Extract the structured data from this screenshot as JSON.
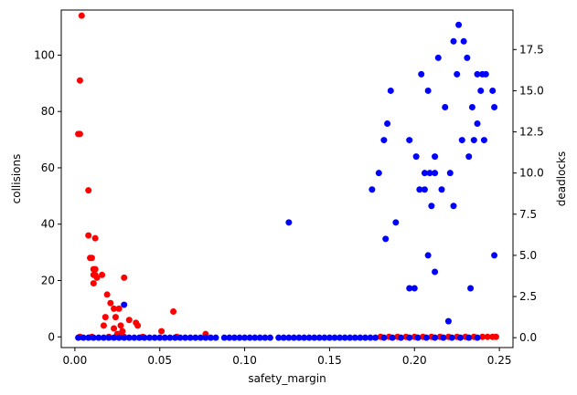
{
  "chart_data": {
    "type": "scatter",
    "title": "",
    "xlabel": "safety_margin",
    "ylabel_left": "collisions",
    "ylabel_right": "deadlocks",
    "xlim": [
      -0.008,
      0.258
    ],
    "ylim_left": [
      -3.8,
      116
    ],
    "ylim_right": [
      -0.6,
      19.9
    ],
    "x_ticks": [
      {
        "value": 0.0,
        "label": "0.00"
      },
      {
        "value": 0.05,
        "label": "0.05"
      },
      {
        "value": 0.1,
        "label": "0.10"
      },
      {
        "value": 0.15,
        "label": "0.15"
      },
      {
        "value": 0.2,
        "label": "0.20"
      },
      {
        "value": 0.25,
        "label": "0.25"
      }
    ],
    "y_left_ticks": [
      {
        "value": 0,
        "label": "0"
      },
      {
        "value": 20,
        "label": "20"
      },
      {
        "value": 40,
        "label": "40"
      },
      {
        "value": 60,
        "label": "60"
      },
      {
        "value": 80,
        "label": "80"
      },
      {
        "value": 100,
        "label": "100"
      }
    ],
    "y_right_ticks": [
      {
        "value": 0,
        "label": "0.0"
      },
      {
        "value": 2.5,
        "label": "2.5"
      },
      {
        "value": 5,
        "label": "5.0"
      },
      {
        "value": 7.5,
        "label": "7.5"
      },
      {
        "value": 10,
        "label": "10.0"
      },
      {
        "value": 12.5,
        "label": "12.5"
      },
      {
        "value": 15,
        "label": "15.0"
      },
      {
        "value": 17.5,
        "label": "17.5"
      }
    ],
    "series": [
      {
        "name": "collisions",
        "axis": "left",
        "color": "#ff0000",
        "points": [
          [
            0.004,
            114
          ],
          [
            0.003,
            91
          ],
          [
            0.002,
            72
          ],
          [
            0.003,
            72
          ],
          [
            0.008,
            52
          ],
          [
            0.008,
            36
          ],
          [
            0.009,
            28
          ],
          [
            0.01,
            28
          ],
          [
            0.011,
            24
          ],
          [
            0.012,
            24
          ],
          [
            0.012,
            35
          ],
          [
            0.011,
            22
          ],
          [
            0.012,
            22
          ],
          [
            0.011,
            19
          ],
          [
            0.013,
            21
          ],
          [
            0.016,
            22
          ],
          [
            0.019,
            15
          ],
          [
            0.021,
            12
          ],
          [
            0.023,
            10
          ],
          [
            0.018,
            7
          ],
          [
            0.024,
            7
          ],
          [
            0.017,
            4
          ],
          [
            0.026,
            10
          ],
          [
            0.027,
            4
          ],
          [
            0.023,
            3
          ],
          [
            0.028,
            2
          ],
          [
            0.029,
            21
          ],
          [
            0.025,
            1
          ],
          [
            0.027,
            1
          ],
          [
            0.025,
            0
          ],
          [
            0.029,
            0
          ],
          [
            0.032,
            6
          ],
          [
            0.036,
            5
          ],
          [
            0.037,
            4
          ],
          [
            0.051,
            2
          ],
          [
            0.058,
            9
          ],
          [
            0.077,
            1
          ],
          [
            0.003,
            0
          ],
          [
            0.01,
            0
          ],
          [
            0.02,
            0
          ],
          [
            0.04,
            0
          ],
          [
            0.06,
            0
          ],
          [
            0.18,
            0
          ],
          [
            0.185,
            0
          ],
          [
            0.19,
            0
          ],
          [
            0.195,
            0
          ],
          [
            0.2,
            0
          ],
          [
            0.205,
            0
          ],
          [
            0.21,
            0
          ],
          [
            0.215,
            0
          ],
          [
            0.22,
            0
          ],
          [
            0.225,
            0
          ],
          [
            0.23,
            0
          ],
          [
            0.235,
            0
          ],
          [
            0.24,
            0
          ],
          [
            0.243,
            0
          ],
          [
            0.246,
            0
          ],
          [
            0.248,
            0
          ]
        ]
      },
      {
        "name": "deadlocks",
        "axis": "right",
        "color": "#0000ff",
        "points": [
          [
            0.226,
            19
          ],
          [
            0.223,
            18
          ],
          [
            0.229,
            18
          ],
          [
            0.214,
            17
          ],
          [
            0.231,
            17
          ],
          [
            0.204,
            16
          ],
          [
            0.225,
            16
          ],
          [
            0.237,
            16
          ],
          [
            0.24,
            16
          ],
          [
            0.242,
            16
          ],
          [
            0.186,
            15
          ],
          [
            0.208,
            15
          ],
          [
            0.239,
            15
          ],
          [
            0.246,
            15
          ],
          [
            0.218,
            14
          ],
          [
            0.234,
            14
          ],
          [
            0.247,
            14
          ],
          [
            0.184,
            13
          ],
          [
            0.237,
            13
          ],
          [
            0.182,
            12
          ],
          [
            0.197,
            12
          ],
          [
            0.228,
            12
          ],
          [
            0.235,
            12
          ],
          [
            0.241,
            12
          ],
          [
            0.201,
            11
          ],
          [
            0.212,
            11
          ],
          [
            0.232,
            11
          ],
          [
            0.179,
            10
          ],
          [
            0.206,
            10
          ],
          [
            0.209,
            10
          ],
          [
            0.212,
            10
          ],
          [
            0.221,
            10
          ],
          [
            0.175,
            9
          ],
          [
            0.203,
            9
          ],
          [
            0.206,
            9
          ],
          [
            0.216,
            9
          ],
          [
            0.21,
            8
          ],
          [
            0.223,
            8
          ],
          [
            0.126,
            7
          ],
          [
            0.189,
            7
          ],
          [
            0.183,
            6
          ],
          [
            0.208,
            5
          ],
          [
            0.247,
            5
          ],
          [
            0.212,
            4
          ],
          [
            0.197,
            3
          ],
          [
            0.2,
            3
          ],
          [
            0.233,
            3
          ],
          [
            0.029,
            2
          ],
          [
            0.22,
            1
          ],
          [
            0.002,
            0
          ],
          [
            0.005,
            0
          ],
          [
            0.008,
            0
          ],
          [
            0.011,
            0
          ],
          [
            0.014,
            0
          ],
          [
            0.017,
            0
          ],
          [
            0.02,
            0
          ],
          [
            0.023,
            0
          ],
          [
            0.026,
            0
          ],
          [
            0.029,
            0
          ],
          [
            0.032,
            0
          ],
          [
            0.035,
            0
          ],
          [
            0.038,
            0
          ],
          [
            0.041,
            0
          ],
          [
            0.044,
            0
          ],
          [
            0.047,
            0
          ],
          [
            0.05,
            0
          ],
          [
            0.053,
            0
          ],
          [
            0.056,
            0
          ],
          [
            0.059,
            0
          ],
          [
            0.062,
            0
          ],
          [
            0.065,
            0
          ],
          [
            0.068,
            0
          ],
          [
            0.071,
            0
          ],
          [
            0.074,
            0
          ],
          [
            0.077,
            0
          ],
          [
            0.08,
            0
          ],
          [
            0.083,
            0
          ],
          [
            0.088,
            0
          ],
          [
            0.091,
            0
          ],
          [
            0.094,
            0
          ],
          [
            0.097,
            0
          ],
          [
            0.1,
            0
          ],
          [
            0.103,
            0
          ],
          [
            0.106,
            0
          ],
          [
            0.109,
            0
          ],
          [
            0.112,
            0
          ],
          [
            0.115,
            0
          ],
          [
            0.12,
            0
          ],
          [
            0.123,
            0
          ],
          [
            0.126,
            0
          ],
          [
            0.129,
            0
          ],
          [
            0.132,
            0
          ],
          [
            0.135,
            0
          ],
          [
            0.138,
            0
          ],
          [
            0.141,
            0
          ],
          [
            0.144,
            0
          ],
          [
            0.147,
            0
          ],
          [
            0.15,
            0
          ],
          [
            0.153,
            0
          ],
          [
            0.156,
            0
          ],
          [
            0.159,
            0
          ],
          [
            0.162,
            0
          ],
          [
            0.165,
            0
          ],
          [
            0.168,
            0
          ],
          [
            0.171,
            0
          ],
          [
            0.174,
            0
          ],
          [
            0.177,
            0
          ],
          [
            0.182,
            0
          ],
          [
            0.187,
            0
          ],
          [
            0.192,
            0
          ],
          [
            0.197,
            0
          ],
          [
            0.202,
            0
          ],
          [
            0.207,
            0
          ],
          [
            0.212,
            0
          ],
          [
            0.217,
            0
          ],
          [
            0.222,
            0
          ],
          [
            0.227,
            0
          ],
          [
            0.232,
            0
          ],
          [
            0.237,
            0
          ]
        ]
      }
    ]
  }
}
